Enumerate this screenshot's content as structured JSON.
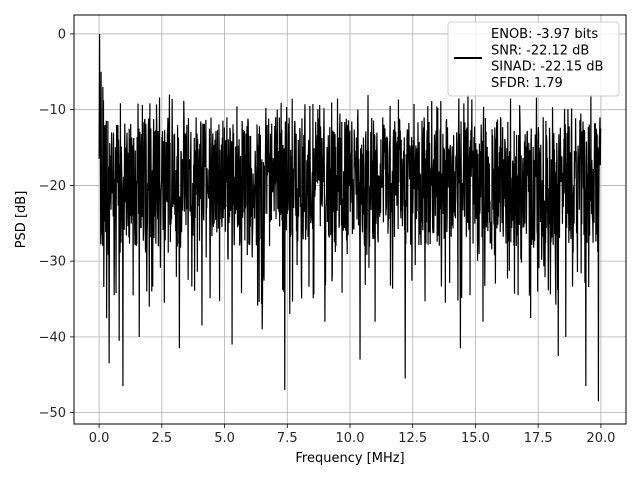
{
  "chart_data": {
    "type": "line",
    "xlabel": "Frequency [MHz]",
    "ylabel": "PSD [dB]",
    "xlim": [
      -1.0,
      21.0
    ],
    "ylim": [
      -51.5,
      2.5
    ],
    "xticks": [
      0.0,
      2.5,
      5.0,
      7.5,
      10.0,
      12.5,
      15.0,
      17.5,
      20.0
    ],
    "xtick_labels": [
      "0.0",
      "2.5",
      "5.0",
      "7.5",
      "10.0",
      "12.5",
      "15.0",
      "17.5",
      "20.0"
    ],
    "yticks": [
      0,
      -10,
      -20,
      -30,
      -40,
      -50
    ],
    "ytick_labels": [
      "0",
      "−10",
      "−20",
      "−30",
      "−40",
      "−50"
    ],
    "grid": true,
    "legend_position": "top-right",
    "legend_entries": [
      "ENOB: -3.97 bits",
      "SNR: -22.12 dB",
      "SINAD: -22.15 dB",
      "SFDR: 1.79"
    ],
    "line_color": "#000000",
    "series": [
      {
        "x": [
          0.0,
          0.02,
          0.05,
          0.08,
          0.1,
          0.15,
          0.2,
          0.25,
          0.3,
          0.35,
          0.4,
          0.5,
          0.6,
          0.7,
          0.8,
          0.95,
          1.2,
          1.6,
          1.9,
          2.0,
          2.3,
          2.6,
          3.2,
          3.5,
          4.1,
          4.4,
          5.3,
          5.7,
          6.1,
          6.5,
          7.1,
          7.4,
          7.6,
          8.4,
          9.0,
          9.6,
          9.9,
          10.4,
          11.0,
          11.6,
          12.2,
          12.6,
          13.1,
          13.8,
          14.4,
          14.7,
          15.3,
          16.0,
          16.7,
          17.2,
          17.7,
          18.3,
          18.6,
          19.2,
          19.4,
          19.6,
          19.9,
          20.0
        ],
        "y": [
          -16.5,
          0.0,
          -12.0,
          -5.0,
          -26.5,
          -7.0,
          -24.0,
          -12.0,
          -37.5,
          -11.5,
          -43.5,
          -13.0,
          -34.5,
          -12.0,
          -40.5,
          -46.5,
          -12.5,
          -40.0,
          -34.0,
          -36.0,
          -12.0,
          -35.5,
          -41.5,
          -12.0,
          -38.5,
          -12.5,
          -41.0,
          -11.5,
          -29.5,
          -39.0,
          -10.0,
          -47.0,
          -37.0,
          -9.5,
          -38.0,
          -10.5,
          -12.0,
          -43.0,
          -38.0,
          -9.5,
          -45.5,
          -30.5,
          -9.5,
          -35.5,
          -41.5,
          -8.0,
          -38.0,
          -11.0,
          -34.5,
          -37.5,
          -11.0,
          -42.5,
          -40.0,
          -10.5,
          -46.5,
          -8.0,
          -48.5,
          -12.5
        ]
      }
    ]
  }
}
